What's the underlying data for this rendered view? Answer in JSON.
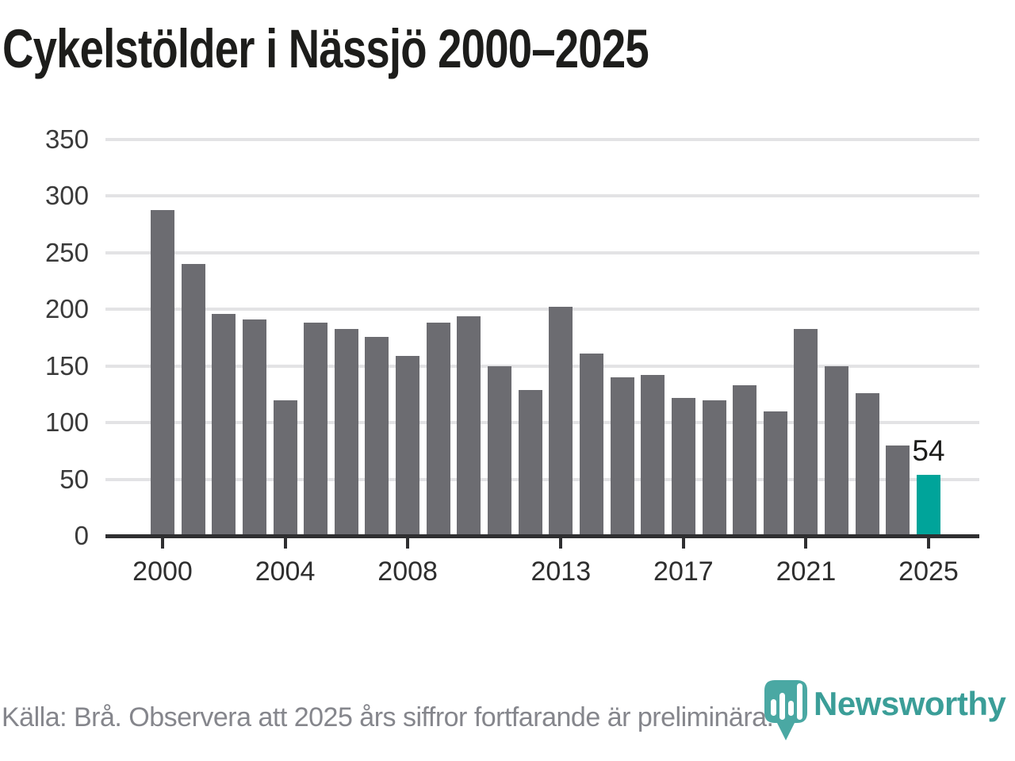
{
  "title": "Cykelstölder i Nässjö 2000–2025",
  "source_note": "Källa: Brå. Observera att 2025 års siffror fortfarande är preliminära.",
  "logo": {
    "name": "Newsworthy"
  },
  "colors": {
    "bar": "#6c6c71",
    "highlight": "#00a49a",
    "gridline": "#e3e3e5",
    "axis": "#2f2f31",
    "title": "#1d1d1b",
    "axis_label": "#3a3a3a",
    "source_text": "#85868c",
    "logo_teal": "#4aa8a3",
    "wordmark_teal": "#3b9e98"
  },
  "chart_data": {
    "type": "bar",
    "title": "Cykelstölder i Nässjö 2000–2025",
    "x": [
      2000,
      2001,
      2002,
      2003,
      2004,
      2005,
      2006,
      2007,
      2008,
      2009,
      2010,
      2011,
      2012,
      2013,
      2014,
      2015,
      2016,
      2017,
      2018,
      2019,
      2020,
      2021,
      2022,
      2023,
      2024,
      2025
    ],
    "values": [
      288,
      240,
      196,
      191,
      120,
      188,
      183,
      176,
      159,
      188,
      194,
      150,
      129,
      202,
      161,
      140,
      142,
      122,
      120,
      133,
      110,
      183,
      150,
      126,
      80,
      54
    ],
    "ylim": [
      0,
      350
    ],
    "yticks": [
      0,
      50,
      100,
      150,
      200,
      250,
      300,
      350
    ],
    "xtick_years": [
      2000,
      2004,
      2008,
      2013,
      2017,
      2021,
      2025
    ],
    "highlight_year": 2025,
    "data_labels": [
      {
        "year": 2025,
        "text": "54"
      }
    ],
    "grid": true,
    "legend": false
  }
}
